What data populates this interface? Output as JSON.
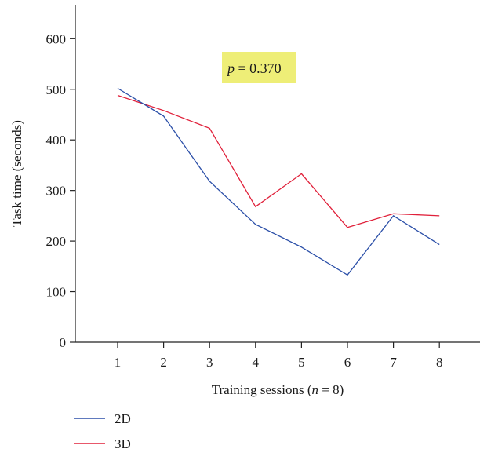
{
  "chart_data": {
    "type": "line",
    "xlabel_prefix": "Training sessions (",
    "xlabel_var": "n",
    "xlabel_suffix": " = 8)",
    "ylabel": "Task time (seconds)",
    "x": [
      1,
      2,
      3,
      4,
      5,
      6,
      7,
      8
    ],
    "x_ticks": [
      "1",
      "2",
      "3",
      "4",
      "5",
      "6",
      "7",
      "8"
    ],
    "y_ticks": [
      "0",
      "100",
      "200",
      "300",
      "400",
      "500",
      "600"
    ],
    "xlim": [
      0,
      9.5
    ],
    "ylim": [
      0,
      670
    ],
    "grid": false,
    "legend_position": "bottom-left",
    "series": [
      {
        "name": "2D",
        "color": "#2b4fa8",
        "values": [
          502,
          447,
          318,
          233,
          188,
          133,
          250,
          193
        ]
      },
      {
        "name": "3D",
        "color": "#e0203a",
        "values": [
          488,
          458,
          423,
          268,
          333,
          227,
          254,
          250
        ]
      }
    ],
    "annotation": {
      "var": "p",
      "rest": " = 0.370",
      "background": "#eeee77"
    }
  }
}
